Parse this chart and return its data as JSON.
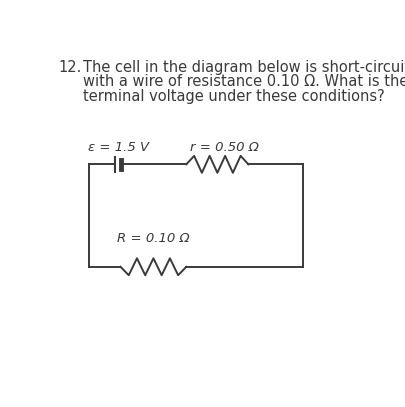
{
  "title_number": "12.",
  "question_text_line1": "The cell in the diagram below is short-circuited",
  "question_text_line2": "with a wire of resistance 0.10 Ω. What is the",
  "question_text_line3": "terminal voltage under these conditions?",
  "epsilon_label": "ε = 1.5 V",
  "r_label": "r = 0.50 Ω",
  "R_label": "R = 0.10 Ω",
  "background_color": "#ffffff",
  "text_color": "#3a3a3a",
  "circuit_color": "#3a3a3a",
  "font_size_question": 10.5,
  "font_size_labels": 9.5
}
